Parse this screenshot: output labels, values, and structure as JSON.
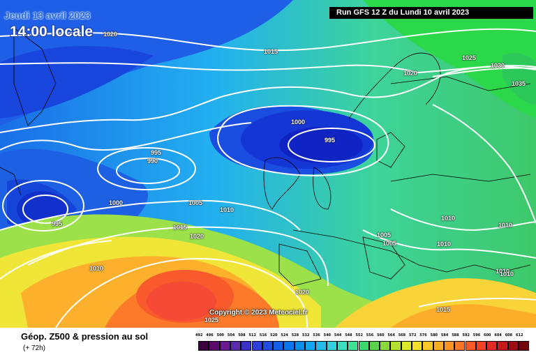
{
  "header": {
    "date": "Jeudi 13 avril 2023",
    "time": "14:00 locale",
    "run": "Run GFS 12 Z du Lundi 10 avril 2023"
  },
  "copyright": "Copyright © 2023 Meteociel.fr",
  "footer": {
    "title": "Géop. Z500 & pression au sol",
    "subtitle": "(+ 72h)"
  },
  "colors": {
    "low": "#1a3fd8",
    "mid": "#33cc66",
    "high": "#ff4a30",
    "isobar": "#ffffff"
  },
  "isobar_labels": [
    "1020",
    "1015",
    "1020",
    "1025",
    "1030",
    "1035",
    "1000",
    "995",
    "995",
    "990",
    "1000",
    "1005",
    "1010",
    "995",
    "1015",
    "1020",
    "1010",
    "1010",
    "1010",
    "1005",
    "1005",
    "1010",
    "1010",
    "1010",
    "1020",
    "1015",
    "1025"
  ],
  "legend": {
    "labels": [
      "492",
      "496",
      "500",
      "504",
      "508",
      "512",
      "516",
      "520",
      "524",
      "528",
      "532",
      "536",
      "540",
      "544",
      "548",
      "552",
      "556",
      "560",
      "564",
      "568",
      "572",
      "576",
      "580",
      "584",
      "588",
      "592",
      "596",
      "600",
      "604",
      "608",
      "612"
    ],
    "colors": [
      "#3b0040",
      "#5a0a6a",
      "#6a1a90",
      "#5a2ab0",
      "#3a32c8",
      "#2e3ed8",
      "#1e4ee0",
      "#1060e8",
      "#0a76ee",
      "#0a8ef0",
      "#10a6f0",
      "#22bcea",
      "#36d0e0",
      "#40dcc0",
      "#42e096",
      "#3cd86a",
      "#5cd24a",
      "#8ad83a",
      "#b4e030",
      "#dce82a",
      "#f4e02a",
      "#fcc828",
      "#fcae28",
      "#fc9228",
      "#fc7628",
      "#fc5a28",
      "#f44228",
      "#e02a24",
      "#c41a1c",
      "#a00c14",
      "#74040c"
    ]
  }
}
